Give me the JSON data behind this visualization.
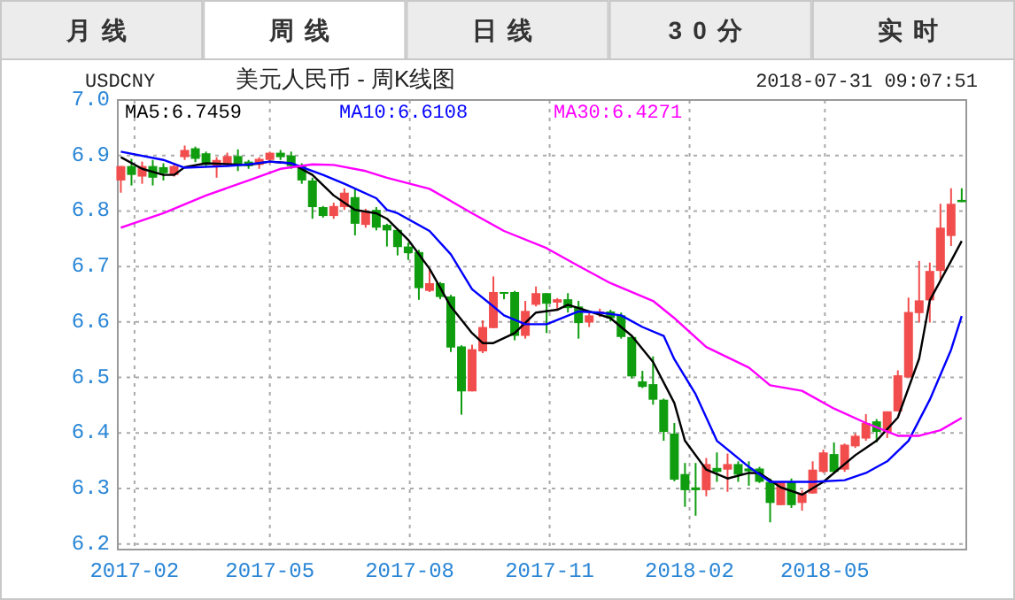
{
  "chart_data": [
    {
      "type": "other",
      "categories": [
        "月线",
        "周线",
        "日线",
        "30分",
        "实时"
      ]
    },
    {
      "type": "candlestick",
      "title": "美元人民币 - 周K线图",
      "subtitle": "USDCNY",
      "annotations": [
        "2018-07-31 09:07:51"
      ],
      "x": [
        "2017-01-23",
        "2017-01-30",
        "2017-02-06",
        "2017-02-13",
        "2017-02-20",
        "2017-02-27",
        "2017-03-06",
        "2017-03-13",
        "2017-03-20",
        "2017-03-27",
        "2017-04-03",
        "2017-04-10",
        "2017-04-17",
        "2017-04-24",
        "2017-05-01",
        "2017-05-08",
        "2017-05-15",
        "2017-05-22",
        "2017-05-29",
        "2017-06-05",
        "2017-06-12",
        "2017-06-19",
        "2017-06-26",
        "2017-07-03",
        "2017-07-10",
        "2017-07-17",
        "2017-07-24",
        "2017-07-31",
        "2017-08-07",
        "2017-08-14",
        "2017-08-21",
        "2017-08-28",
        "2017-09-04",
        "2017-09-11",
        "2017-09-18",
        "2017-09-25",
        "2017-10-02",
        "2017-10-09",
        "2017-10-16",
        "2017-10-23",
        "2017-10-30",
        "2017-11-06",
        "2017-11-13",
        "2017-11-20",
        "2017-11-27",
        "2017-12-04",
        "2017-12-11",
        "2017-12-18",
        "2017-12-25",
        "2018-01-01",
        "2018-01-08",
        "2018-01-15",
        "2018-01-22",
        "2018-01-29",
        "2018-02-05",
        "2018-02-12",
        "2018-02-19",
        "2018-02-26",
        "2018-03-05",
        "2018-03-12",
        "2018-03-19",
        "2018-03-26",
        "2018-04-02",
        "2018-04-09",
        "2018-04-16",
        "2018-04-23",
        "2018-04-30",
        "2018-05-07",
        "2018-05-14",
        "2018-05-21",
        "2018-05-28",
        "2018-06-04",
        "2018-06-11",
        "2018-06-18",
        "2018-06-25",
        "2018-07-02",
        "2018-07-09",
        "2018-07-16",
        "2018-07-23",
        "2018-07-30"
      ],
      "ohlc": [
        [
          6.855,
          6.881,
          6.833,
          6.881
        ],
        [
          6.881,
          6.894,
          6.846,
          6.865
        ],
        [
          6.862,
          6.889,
          6.849,
          6.881
        ],
        [
          6.881,
          6.892,
          6.846,
          6.86
        ],
        [
          6.879,
          6.886,
          6.855,
          6.868
        ],
        [
          6.865,
          6.886,
          6.862,
          6.881
        ],
        [
          6.897,
          6.918,
          6.892,
          6.91
        ],
        [
          6.913,
          6.916,
          6.888,
          6.894
        ],
        [
          6.904,
          6.907,
          6.879,
          6.883
        ],
        [
          6.879,
          6.897,
          6.86,
          6.892
        ],
        [
          6.883,
          6.905,
          6.881,
          6.899
        ],
        [
          6.899,
          6.911,
          6.872,
          6.881
        ],
        [
          6.889,
          6.892,
          6.876,
          6.881
        ],
        [
          6.883,
          6.897,
          6.876,
          6.894
        ],
        [
          6.892,
          6.907,
          6.886,
          6.905
        ],
        [
          6.905,
          6.91,
          6.892,
          6.897
        ],
        [
          6.9,
          6.907,
          6.876,
          6.881
        ],
        [
          6.881,
          6.886,
          6.849,
          6.855
        ],
        [
          6.855,
          6.86,
          6.786,
          6.807
        ],
        [
          6.807,
          6.809,
          6.788,
          6.791
        ],
        [
          6.791,
          6.815,
          6.786,
          6.809
        ],
        [
          6.807,
          6.841,
          6.802,
          6.833
        ],
        [
          6.825,
          6.839,
          6.756,
          6.777
        ],
        [
          6.775,
          6.804,
          6.77,
          6.799
        ],
        [
          6.802,
          6.807,
          6.765,
          6.77
        ],
        [
          6.775,
          6.777,
          6.736,
          6.765
        ],
        [
          6.766,
          6.769,
          6.72,
          6.735
        ],
        [
          6.736,
          6.743,
          6.712,
          6.724
        ],
        [
          6.726,
          6.73,
          6.64,
          6.661
        ],
        [
          6.656,
          6.696,
          6.654,
          6.67
        ],
        [
          6.67,
          6.672,
          6.641,
          6.645
        ],
        [
          6.646,
          6.649,
          6.546,
          6.554
        ],
        [
          6.556,
          6.558,
          6.433,
          6.475
        ],
        [
          6.475,
          6.559,
          6.475,
          6.551
        ],
        [
          6.547,
          6.603,
          6.544,
          6.591
        ],
        [
          6.589,
          6.682,
          6.589,
          6.654
        ],
        [
          6.654,
          6.654,
          6.641,
          6.652
        ],
        [
          6.654,
          6.656,
          6.567,
          6.575
        ],
        [
          6.575,
          6.638,
          6.57,
          6.62
        ],
        [
          6.631,
          6.664,
          6.628,
          6.652
        ],
        [
          6.652,
          6.652,
          6.58,
          6.633
        ],
        [
          6.635,
          6.643,
          6.624,
          6.641
        ],
        [
          6.641,
          6.652,
          6.617,
          6.625
        ],
        [
          6.628,
          6.638,
          6.57,
          6.598
        ],
        [
          6.599,
          6.617,
          6.591,
          6.612
        ],
        [
          6.615,
          6.624,
          6.609,
          6.619
        ],
        [
          6.619,
          6.622,
          6.601,
          6.607
        ],
        [
          6.612,
          6.617,
          6.57,
          6.573
        ],
        [
          6.573,
          6.575,
          6.498,
          6.502
        ],
        [
          6.493,
          6.512,
          6.481,
          6.483
        ],
        [
          6.488,
          6.538,
          6.451,
          6.46
        ],
        [
          6.46,
          6.462,
          6.386,
          6.402
        ],
        [
          6.399,
          6.418,
          6.313,
          6.316
        ],
        [
          6.326,
          6.346,
          6.267,
          6.297
        ],
        [
          6.302,
          6.346,
          6.251,
          6.297
        ],
        [
          6.297,
          6.355,
          6.286,
          6.344
        ],
        [
          6.337,
          6.365,
          6.312,
          6.33
        ],
        [
          6.334,
          6.363,
          6.294,
          6.344
        ],
        [
          6.344,
          6.349,
          6.312,
          6.325
        ],
        [
          6.336,
          6.349,
          6.305,
          6.331
        ],
        [
          6.336,
          6.339,
          6.31,
          6.312
        ],
        [
          6.312,
          6.318,
          6.239,
          6.274
        ],
        [
          6.27,
          6.312,
          6.27,
          6.312
        ],
        [
          6.312,
          6.318,
          6.265,
          6.27
        ],
        [
          6.274,
          6.297,
          6.26,
          6.291
        ],
        [
          6.291,
          6.349,
          6.291,
          6.334
        ],
        [
          6.33,
          6.37,
          6.328,
          6.365
        ],
        [
          6.362,
          6.383,
          6.328,
          6.33
        ],
        [
          6.334,
          6.381,
          6.33,
          6.379
        ],
        [
          6.376,
          6.399,
          6.373,
          6.395
        ],
        [
          6.39,
          6.434,
          6.386,
          6.418
        ],
        [
          6.421,
          6.425,
          6.383,
          6.402
        ],
        [
          6.402,
          6.439,
          6.391,
          6.439
        ],
        [
          6.439,
          6.513,
          6.439,
          6.504
        ],
        [
          6.5,
          6.644,
          6.5,
          6.618
        ],
        [
          6.616,
          6.71,
          6.599,
          6.639
        ],
        [
          6.639,
          6.707,
          6.599,
          6.692
        ],
        [
          6.692,
          6.813,
          6.673,
          6.77
        ],
        [
          6.755,
          6.841,
          6.737,
          6.813
        ],
        [
          6.82,
          6.841,
          6.816,
          6.816
        ]
      ],
      "colors": [
        "#f24d4d",
        "#0f9d0f",
        "#f24d4d",
        "#0f9d0f",
        "#0f9d0f",
        "#f24d4d",
        "#f24d4d",
        "#0f9d0f",
        "#0f9d0f",
        "#f24d4d",
        "#f24d4d",
        "#0f9d0f",
        "#0f9d0f",
        "#f24d4d",
        "#f24d4d",
        "#0f9d0f",
        "#0f9d0f",
        "#0f9d0f",
        "#0f9d0f",
        "#0f9d0f",
        "#f24d4d",
        "#f24d4d",
        "#0f9d0f",
        "#f24d4d",
        "#0f9d0f",
        "#0f9d0f",
        "#0f9d0f",
        "#0f9d0f",
        "#0f9d0f",
        "#f24d4d",
        "#0f9d0f",
        "#0f9d0f",
        "#0f9d0f",
        "#f24d4d",
        "#f24d4d",
        "#f24d4d",
        "#0f9d0f",
        "#0f9d0f",
        "#f24d4d",
        "#f24d4d",
        "#0f9d0f",
        "#f24d4d",
        "#0f9d0f",
        "#0f9d0f",
        "#f24d4d",
        "#f24d4d",
        "#0f9d0f",
        "#0f9d0f",
        "#0f9d0f",
        "#0f9d0f",
        "#0f9d0f",
        "#0f9d0f",
        "#0f9d0f",
        "#0f9d0f",
        "#0f9d0f",
        "#f24d4d",
        "#0f9d0f",
        "#f24d4d",
        "#0f9d0f",
        "#0f9d0f",
        "#0f9d0f",
        "#0f9d0f",
        "#f24d4d",
        "#0f9d0f",
        "#f24d4d",
        "#f24d4d",
        "#f24d4d",
        "#0f9d0f",
        "#f24d4d",
        "#f24d4d",
        "#f24d4d",
        "#0f9d0f",
        "#f24d4d",
        "#f24d4d",
        "#f24d4d",
        "#f24d4d",
        "#f24d4d",
        "#f24d4d",
        "#f24d4d",
        "#0f9d0f"
      ],
      "series": [
        {
          "type": "line",
          "name": "MA5:6.7459",
          "color": "#000000",
          "x": [
            "2017-01-23",
            "2017-02-06",
            "2017-02-20",
            "2017-02-27",
            "2017-03-06",
            "2017-03-20",
            "2017-04-17",
            "2017-05-01",
            "2017-05-15",
            "2017-05-29",
            "2017-06-12",
            "2017-06-26",
            "2017-07-10",
            "2017-07-17",
            "2017-07-31",
            "2017-08-14",
            "2017-08-28",
            "2017-09-11",
            "2017-09-18",
            "2017-09-25",
            "2017-10-09",
            "2017-10-23",
            "2017-11-06",
            "2017-11-13",
            "2017-11-27",
            "2017-12-11",
            "2017-12-25",
            "2018-01-08",
            "2018-01-22",
            "2018-01-29",
            "2018-02-12",
            "2018-02-26",
            "2018-03-12",
            "2018-03-19",
            "2018-04-02",
            "2018-04-16",
            "2018-04-30",
            "2018-05-21",
            "2018-06-04",
            "2018-06-18",
            "2018-07-02",
            "2018-07-09",
            "2018-07-23",
            "2018-07-30"
          ],
          "values": [
            6.897,
            6.876,
            6.865,
            6.865,
            6.879,
            6.886,
            6.883,
            6.889,
            6.886,
            6.865,
            6.828,
            6.802,
            6.796,
            6.786,
            6.748,
            6.696,
            6.628,
            6.58,
            6.562,
            6.562,
            6.58,
            6.617,
            6.622,
            6.631,
            6.619,
            6.607,
            6.575,
            6.528,
            6.454,
            6.386,
            6.334,
            6.318,
            6.328,
            6.328,
            6.302,
            6.289,
            6.312,
            6.36,
            6.386,
            6.428,
            6.534,
            6.639,
            6.71,
            6.7459
          ]
        },
        {
          "type": "line",
          "name": "MA10:6.6108",
          "color": "#0000ff",
          "x": [
            "2017-01-23",
            "2017-02-20",
            "2017-03-06",
            "2017-04-03",
            "2017-04-17",
            "2017-05-01",
            "2017-05-15",
            "2017-06-05",
            "2017-06-19",
            "2017-07-10",
            "2017-07-17",
            "2017-07-24",
            "2017-08-14",
            "2017-08-28",
            "2017-09-11",
            "2017-09-25",
            "2017-10-02",
            "2017-10-16",
            "2017-10-30",
            "2017-11-20",
            "2017-12-04",
            "2017-12-18",
            "2018-01-01",
            "2018-01-15",
            "2018-01-22",
            "2018-02-05",
            "2018-02-19",
            "2018-03-12",
            "2018-03-26",
            "2018-04-23",
            "2018-05-14",
            "2018-05-28",
            "2018-06-11",
            "2018-06-25",
            "2018-07-09",
            "2018-07-23",
            "2018-07-30"
          ],
          "values": [
            6.907,
            6.892,
            6.878,
            6.881,
            6.884,
            6.889,
            6.886,
            6.865,
            6.849,
            6.823,
            6.802,
            6.796,
            6.764,
            6.722,
            6.659,
            6.628,
            6.612,
            6.596,
            6.596,
            6.619,
            6.617,
            6.612,
            6.591,
            6.575,
            6.533,
            6.47,
            6.386,
            6.339,
            6.312,
            6.312,
            6.315,
            6.328,
            6.349,
            6.386,
            6.46,
            6.55,
            6.6108
          ]
        },
        {
          "type": "line",
          "name": "MA30:6.4271",
          "color": "#ff00ff",
          "x": [
            "2017-01-23",
            "2017-02-20",
            "2017-03-20",
            "2017-04-17",
            "2017-05-08",
            "2017-05-29",
            "2017-06-12",
            "2017-07-03",
            "2017-07-17",
            "2017-08-14",
            "2017-09-11",
            "2017-10-02",
            "2017-10-30",
            "2017-11-20",
            "2017-12-11",
            "2018-01-08",
            "2018-01-22",
            "2018-02-12",
            "2018-03-12",
            "2018-03-26",
            "2018-04-16",
            "2018-05-07",
            "2018-05-28",
            "2018-06-18",
            "2018-07-02",
            "2018-07-16",
            "2018-07-30"
          ],
          "values": [
            6.77,
            6.796,
            6.828,
            6.855,
            6.876,
            6.884,
            6.883,
            6.872,
            6.86,
            6.84,
            6.796,
            6.764,
            6.733,
            6.701,
            6.67,
            6.638,
            6.607,
            6.555,
            6.518,
            6.486,
            6.476,
            6.444,
            6.418,
            6.395,
            6.395,
            6.405,
            6.4271
          ]
        }
      ],
      "xlim": [
        "2017-01-21",
        "2018-08-02"
      ],
      "ylim": [
        6.19,
        7.0
      ],
      "xticks": [
        "2017-02",
        "2017-05",
        "2017-08",
        "2017-11",
        "2018-02",
        "2018-05"
      ],
      "yticks": [
        6.2,
        6.3,
        6.4,
        6.5,
        6.6,
        6.7,
        6.8,
        6.9,
        {
          "value": 7.0,
          "label": "7.0"
        }
      ],
      "grid": true,
      "legend": "top"
    }
  ]
}
